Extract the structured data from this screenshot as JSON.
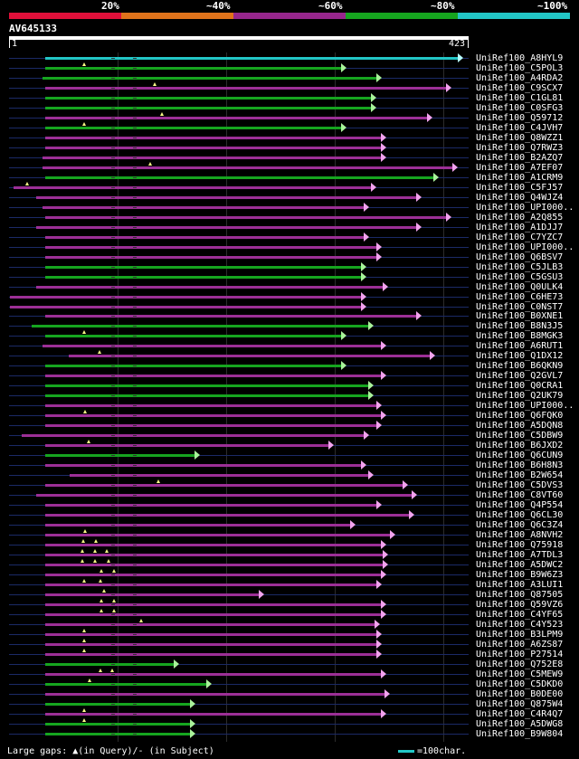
{
  "legend": {
    "segments": [
      {
        "label": "20%",
        "color": "#e0103a"
      },
      {
        "label": "~40%",
        "color": "#e0731b"
      },
      {
        "label": "~60%",
        "color": "#96268c"
      },
      {
        "label": "~80%",
        "color": "#16a51f"
      },
      {
        "label": "~100%",
        "color": "#22c6c6"
      }
    ]
  },
  "query": {
    "id": "AV645133",
    "start_label": "1",
    "end_label": "423",
    "length": 423
  },
  "colors": {
    "green": "#16a51f",
    "purple": "#9c2f96",
    "cyan": "#22c6c6",
    "arrow_green": "#a9f29a",
    "arrow_purple": "#f2a3ee",
    "arrow_cyan": "#b7fbfb",
    "triangle": "#ffff88"
  },
  "hits": [
    {
      "name": "UniRef100_A8HYL9",
      "color": "cyan",
      "start": 34,
      "end": 418,
      "tris": []
    },
    {
      "name": "UniRef100_C5POL3",
      "color": "green",
      "start": 34,
      "end": 311,
      "tris": [
        70
      ]
    },
    {
      "name": "UniRef100_A4RDA2",
      "color": "green",
      "start": 32,
      "end": 343,
      "tris": []
    },
    {
      "name": "UniRef100_C9SCX7",
      "color": "purple",
      "start": 34,
      "end": 407,
      "tris": [
        135
      ]
    },
    {
      "name": "UniRef100_C1GL81",
      "color": "green",
      "start": 34,
      "end": 338,
      "tris": []
    },
    {
      "name": "UniRef100_C0SFG3",
      "color": "green",
      "start": 34,
      "end": 338,
      "tris": []
    },
    {
      "name": "UniRef100_Q59712",
      "color": "purple",
      "start": 34,
      "end": 390,
      "tris": [
        141
      ]
    },
    {
      "name": "UniRef100_C4JVH7",
      "color": "green",
      "start": 34,
      "end": 311,
      "tris": [
        70
      ]
    },
    {
      "name": "UniRef100_Q8WZZ1",
      "color": "purple",
      "start": 34,
      "end": 347,
      "tris": []
    },
    {
      "name": "UniRef100_Q7RWZ3",
      "color": "purple",
      "start": 34,
      "end": 347,
      "tris": []
    },
    {
      "name": "UniRef100_B2AZQ7",
      "color": "purple",
      "start": 32,
      "end": 347,
      "tris": []
    },
    {
      "name": "UniRef100_A7EF07",
      "color": "purple",
      "start": 32,
      "end": 413,
      "tris": [
        131
      ]
    },
    {
      "name": "UniRef100_A1CRM9",
      "color": "green",
      "start": 34,
      "end": 396,
      "tris": []
    },
    {
      "name": "UniRef100_C5FJ57",
      "color": "purple",
      "start": 5,
      "end": 338,
      "tris": [
        18
      ]
    },
    {
      "name": "UniRef100_Q4WJZ4",
      "color": "purple",
      "start": 26,
      "end": 380,
      "tris": []
    },
    {
      "name": "UniRef100_UPI000..",
      "color": "purple",
      "start": 32,
      "end": 332,
      "tris": []
    },
    {
      "name": "UniRef100_A2Q855",
      "color": "purple",
      "start": 34,
      "end": 407,
      "tris": []
    },
    {
      "name": "UniRef100_A1DJJ7",
      "color": "purple",
      "start": 26,
      "end": 380,
      "tris": []
    },
    {
      "name": "UniRef100_C7YZC7",
      "color": "purple",
      "start": 34,
      "end": 332,
      "tris": []
    },
    {
      "name": "UniRef100_UPI000..",
      "color": "purple",
      "start": 34,
      "end": 343,
      "tris": []
    },
    {
      "name": "UniRef100_Q6BSV7",
      "color": "purple",
      "start": 34,
      "end": 343,
      "tris": []
    },
    {
      "name": "UniRef100_C5JLB3",
      "color": "green",
      "start": 34,
      "end": 329,
      "tris": []
    },
    {
      "name": "UniRef100_C5GSU3",
      "color": "green",
      "start": 34,
      "end": 329,
      "tris": []
    },
    {
      "name": "UniRef100_Q0ULK4",
      "color": "purple",
      "start": 26,
      "end": 349,
      "tris": []
    },
    {
      "name": "UniRef100_C6HE73",
      "color": "purple",
      "start": 2,
      "end": 329,
      "tris": []
    },
    {
      "name": "UniRef100_C0NST7",
      "color": "purple",
      "start": 2,
      "end": 329,
      "tris": []
    },
    {
      "name": "UniRef100_B0XNE1",
      "color": "purple",
      "start": 34,
      "end": 380,
      "tris": []
    },
    {
      "name": "UniRef100_B8N3J5",
      "color": "green",
      "start": 22,
      "end": 336,
      "tris": []
    },
    {
      "name": "UniRef100_B8MGK3",
      "color": "green",
      "start": 34,
      "end": 311,
      "tris": [
        70
      ]
    },
    {
      "name": "UniRef100_A6RUT1",
      "color": "purple",
      "start": 32,
      "end": 347,
      "tris": []
    },
    {
      "name": "UniRef100_Q1DX12",
      "color": "purple",
      "start": 56,
      "end": 392,
      "tris": [
        84
      ]
    },
    {
      "name": "UniRef100_B6QKN9",
      "color": "green",
      "start": 34,
      "end": 311,
      "tris": []
    },
    {
      "name": "UniRef100_Q2GVL7",
      "color": "purple",
      "start": 34,
      "end": 347,
      "tris": []
    },
    {
      "name": "UniRef100_Q0CRA1",
      "color": "green",
      "start": 34,
      "end": 336,
      "tris": []
    },
    {
      "name": "UniRef100_Q2UK79",
      "color": "green",
      "start": 34,
      "end": 336,
      "tris": []
    },
    {
      "name": "UniRef100_UPI000..",
      "color": "purple",
      "start": 34,
      "end": 343,
      "tris": []
    },
    {
      "name": "UniRef100_Q6FQK0",
      "color": "purple",
      "start": 34,
      "end": 347,
      "tris": [
        71
      ]
    },
    {
      "name": "UniRef100_A5DQN8",
      "color": "purple",
      "start": 34,
      "end": 343,
      "tris": []
    },
    {
      "name": "UniRef100_C5DBW9",
      "color": "purple",
      "start": 13,
      "end": 332,
      "tris": []
    },
    {
      "name": "UniRef100_B6JXD2",
      "color": "purple",
      "start": 34,
      "end": 299,
      "tris": [
        74
      ]
    },
    {
      "name": "UniRef100_Q6CUN9",
      "color": "green",
      "start": 34,
      "end": 176,
      "tris": []
    },
    {
      "name": "UniRef100_B6H8N3",
      "color": "purple",
      "start": 34,
      "end": 329,
      "tris": []
    },
    {
      "name": "UniRef100_B2W654",
      "color": "purple",
      "start": 57,
      "end": 336,
      "tris": []
    },
    {
      "name": "UniRef100_C5DVS3",
      "color": "purple",
      "start": 34,
      "end": 367,
      "tris": [
        138
      ]
    },
    {
      "name": "UniRef100_C8VT60",
      "color": "purple",
      "start": 26,
      "end": 376,
      "tris": []
    },
    {
      "name": "UniRef100_Q4P554",
      "color": "purple",
      "start": 34,
      "end": 343,
      "tris": []
    },
    {
      "name": "UniRef100_Q6CL30",
      "color": "purple",
      "start": 34,
      "end": 373,
      "tris": []
    },
    {
      "name": "UniRef100_Q6C3Z4",
      "color": "purple",
      "start": 34,
      "end": 319,
      "tris": []
    },
    {
      "name": "UniRef100_A8NVH2",
      "color": "purple",
      "start": 34,
      "end": 356,
      "tris": [
        71
      ]
    },
    {
      "name": "UniRef100_Q75918",
      "color": "purple",
      "start": 34,
      "end": 347,
      "tris": [
        69,
        81
      ]
    },
    {
      "name": "UniRef100_A7TDL3",
      "color": "purple",
      "start": 34,
      "end": 349,
      "tris": [
        68,
        80,
        91
      ]
    },
    {
      "name": "UniRef100_A5DWC2",
      "color": "purple",
      "start": 34,
      "end": 349,
      "tris": [
        68,
        80,
        92
      ]
    },
    {
      "name": "UniRef100_B9W6Z3",
      "color": "purple",
      "start": 34,
      "end": 347,
      "tris": [
        86,
        97
      ]
    },
    {
      "name": "UniRef100_A3LUI1",
      "color": "purple",
      "start": 34,
      "end": 343,
      "tris": [
        70,
        85
      ]
    },
    {
      "name": "UniRef100_Q87505",
      "color": "purple",
      "start": 34,
      "end": 235,
      "tris": [
        88
      ]
    },
    {
      "name": "UniRef100_Q59VZ6",
      "color": "purple",
      "start": 34,
      "end": 347,
      "tris": [
        86,
        97
      ]
    },
    {
      "name": "UniRef100_C4YF65",
      "color": "purple",
      "start": 34,
      "end": 347,
      "tris": [
        86,
        97
      ]
    },
    {
      "name": "UniRef100_C4Y523",
      "color": "purple",
      "start": 34,
      "end": 342,
      "tris": [
        122
      ]
    },
    {
      "name": "UniRef100_B3LPM9",
      "color": "purple",
      "start": 34,
      "end": 343,
      "tris": [
        70
      ]
    },
    {
      "name": "UniRef100_A6ZS87",
      "color": "purple",
      "start": 34,
      "end": 343,
      "tris": [
        70
      ]
    },
    {
      "name": "UniRef100_P27514",
      "color": "purple",
      "start": 34,
      "end": 343,
      "tris": [
        70
      ]
    },
    {
      "name": "UniRef100_Q752E8",
      "color": "green",
      "start": 34,
      "end": 157,
      "tris": []
    },
    {
      "name": "UniRef100_C5MEW9",
      "color": "purple",
      "start": 34,
      "end": 347,
      "tris": [
        85,
        96
      ]
    },
    {
      "name": "UniRef100_C5DKD0",
      "color": "green",
      "start": 34,
      "end": 187,
      "tris": [
        75
      ]
    },
    {
      "name": "UniRef100_B0DE00",
      "color": "purple",
      "start": 34,
      "end": 351,
      "tris": []
    },
    {
      "name": "UniRef100_Q875W4",
      "color": "green",
      "start": 34,
      "end": 172,
      "tris": []
    },
    {
      "name": "UniRef100_C4R4Q7",
      "color": "purple",
      "start": 34,
      "end": 347,
      "tris": [
        70
      ]
    },
    {
      "name": "UniRef100_A5DWG8",
      "color": "green",
      "start": 34,
      "end": 172,
      "tris": [
        70
      ]
    },
    {
      "name": "UniRef100_B9W804",
      "color": "green",
      "start": 34,
      "end": 172,
      "tris": []
    }
  ],
  "footer": {
    "large_gaps_label": "Large gaps:",
    "in_query_label": "(in Query)/",
    "in_subject_label": "- (in Subject)",
    "scale_label": "=100char."
  }
}
